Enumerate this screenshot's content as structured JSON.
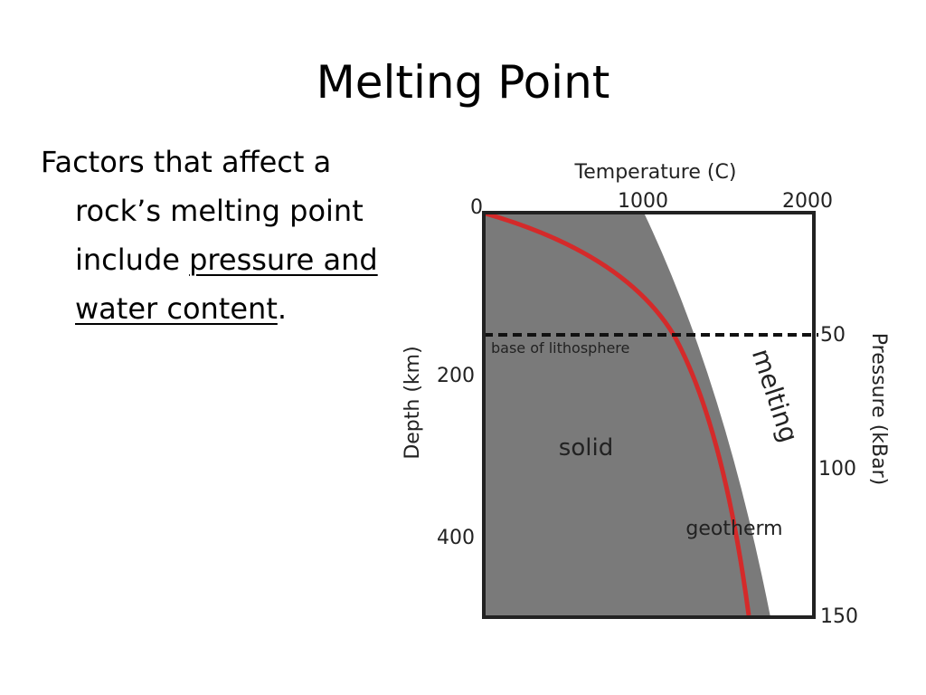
{
  "slide": {
    "title": "Melting Point",
    "bullet": {
      "text": "Factors that affect a rock’s melting point include",
      "emphasis": "pressure and water content",
      "end": "."
    },
    "figure": {
      "top_axis_title": "Temperature (C)",
      "top_ticks": [
        "0",
        "1000",
        "2000"
      ],
      "left_axis_title": "Depth (km)",
      "left_ticks": [
        "200",
        "400"
      ],
      "right_axis_title": "Pressure (kBar)",
      "right_ticks": [
        "50",
        "100",
        "150"
      ],
      "labels": {
        "lithosphere": "base of lithosphere",
        "solid": "solid",
        "melting": "melting",
        "geotherm": "geotherm"
      }
    }
  }
}
